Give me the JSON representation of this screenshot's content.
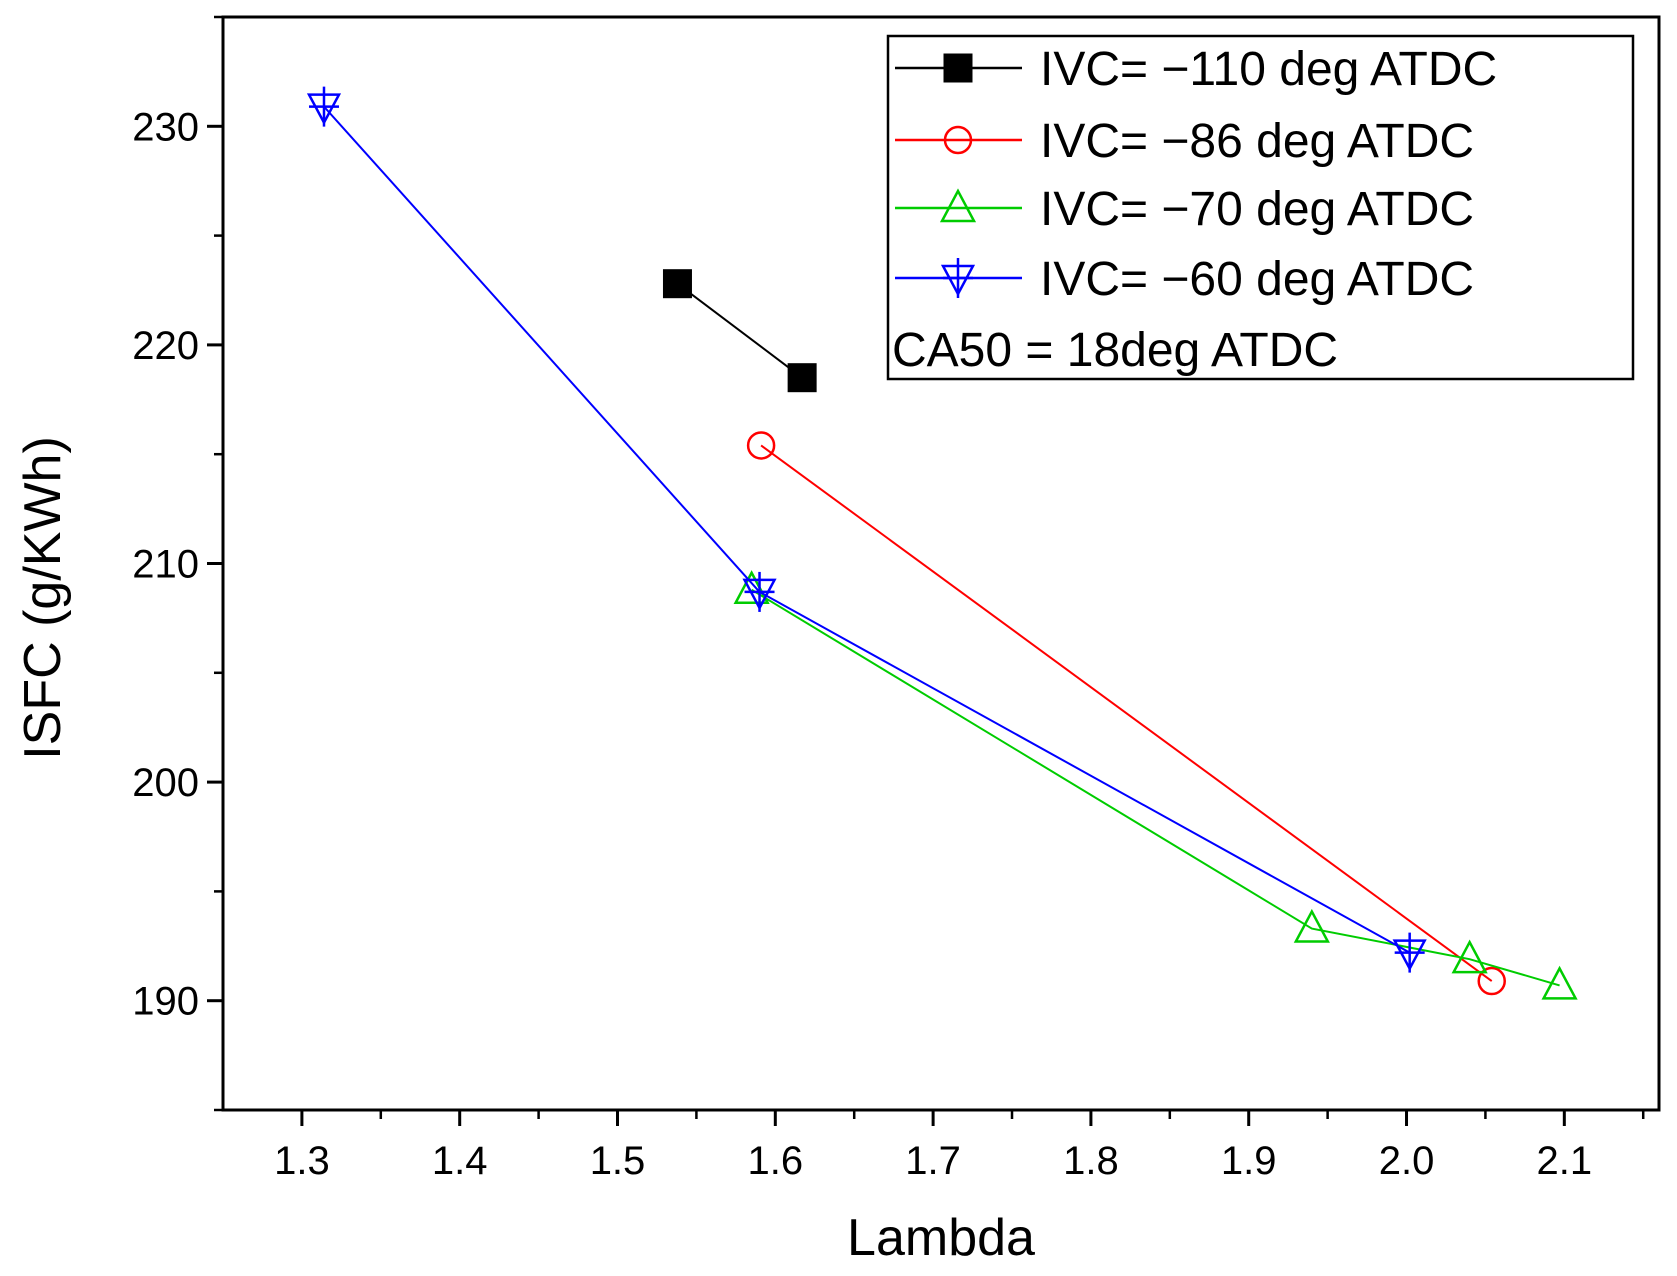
{
  "chart_data": {
    "type": "line",
    "title": "",
    "xlabel": "Lambda",
    "ylabel": "ISFC (g/KWh)",
    "xlim": [
      1.25,
      2.16
    ],
    "ylim": [
      185,
      235
    ],
    "x_ticks": [
      1.3,
      1.4,
      1.5,
      1.6,
      1.7,
      1.8,
      1.9,
      2.0,
      2.1
    ],
    "x_tick_labels": [
      "1.3",
      "1.4",
      "1.5",
      "1.6",
      "1.7",
      "1.8",
      "1.9",
      "2.0",
      "2.1"
    ],
    "y_ticks": [
      190,
      200,
      210,
      220,
      230
    ],
    "y_tick_labels": [
      "190",
      "200",
      "210",
      "220",
      "230"
    ],
    "grid": false,
    "legend_position": "top-right",
    "legend_note": "CA50 = 18deg ATDC",
    "series": [
      {
        "name": "IVC= −110 deg ATDC",
        "color": "#000000",
        "marker": "filled-square",
        "points": [
          [
            1.538,
            222.8
          ],
          [
            1.617,
            218.5
          ]
        ]
      },
      {
        "name": "IVC= −86 deg ATDC",
        "color": "#ff0000",
        "marker": "open-circle",
        "points": [
          [
            1.591,
            215.4
          ],
          [
            2.054,
            190.9
          ]
        ]
      },
      {
        "name": "IVC= −70 deg ATDC",
        "color": "#00cc00",
        "marker": "open-triangle-up",
        "points": [
          [
            1.585,
            208.8
          ],
          [
            1.94,
            193.3
          ],
          [
            2.04,
            191.9
          ],
          [
            2.097,
            190.7
          ]
        ]
      },
      {
        "name": "IVC= −60 deg ATDC",
        "color": "#0000ff",
        "marker": "crossed-triangle-down",
        "points": [
          [
            1.314,
            230.9
          ],
          [
            1.59,
            208.7
          ],
          [
            2.002,
            192.2
          ]
        ]
      }
    ]
  }
}
